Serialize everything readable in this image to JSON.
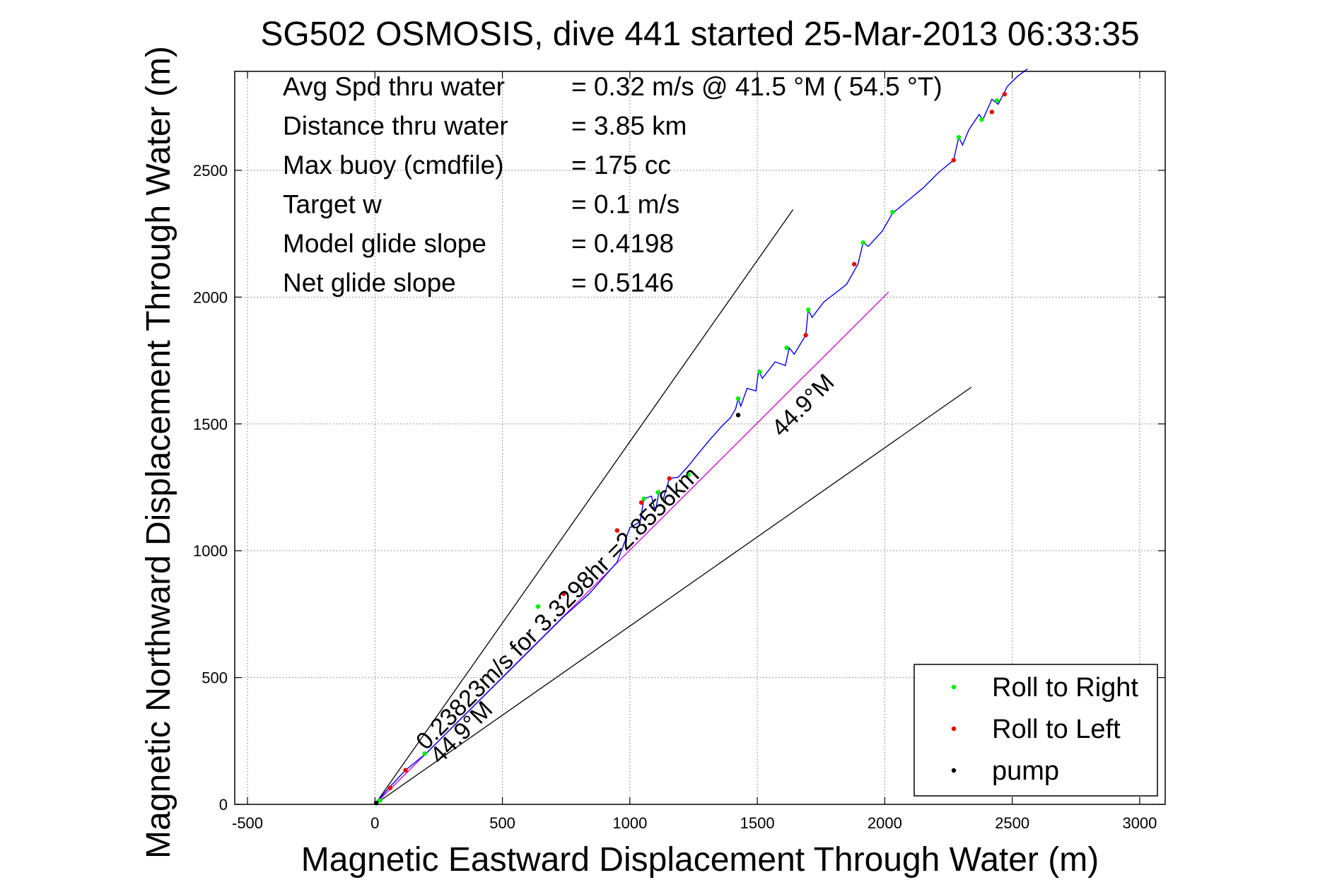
{
  "chart_data": {
    "type": "line",
    "title": "SG502 OSMOSIS, dive 441 started 25-Mar-2013 06:33:35",
    "xlabel": "Magnetic Eastward Displacement Through Water (m)",
    "ylabel": "Magnetic Northward Displacement Through Water (m)",
    "xlim": [
      -550,
      3100
    ],
    "ylim": [
      0,
      2890
    ],
    "xticks": [
      -500,
      0,
      500,
      1000,
      1500,
      2000,
      2500,
      3000
    ],
    "yticks": [
      0,
      500,
      1000,
      1500,
      2000,
      2500
    ],
    "grid": true,
    "info": [
      {
        "label": "Avg Spd thru water",
        "value": "=  0.32 m/s @  41.5 °M ( 54.5 °T)"
      },
      {
        "label": "Distance thru water",
        "value": "=  3.85 km"
      },
      {
        "label": "Max buoy (cmdfile)",
        "value": "= 175 cc"
      },
      {
        "label": "Target w",
        "value": "= 0.1 m/s"
      },
      {
        "label": "Model glide slope",
        "value": "= 0.4198"
      },
      {
        "label": "Net glide slope",
        "value": "= 0.5146"
      }
    ],
    "reference_lines": [
      {
        "from": [
          0,
          0
        ],
        "to": [
          1640,
          2345
        ],
        "color": "#000000"
      },
      {
        "from": [
          0,
          0
        ],
        "to": [
          2340,
          1645
        ],
        "color": "#000000"
      }
    ],
    "heading_line": {
      "from": [
        0,
        0
      ],
      "to": [
        2015,
        2020
      ],
      "color": "#cc00cc"
    },
    "annotations": [
      {
        "text": "0.23823m/s for 3.3298hr =2.8556km",
        "x": 200,
        "y": 210,
        "angle_deg": 45
      },
      {
        "text": "44.9°M",
        "x": 255,
        "y": 155,
        "angle_deg": 45
      },
      {
        "text": "44.9°M",
        "x": 1595,
        "y": 1445,
        "angle_deg": 45
      }
    ],
    "series": [
      {
        "name": "",
        "color": "#0000ff",
        "x": [
          0,
          50,
          120,
          200,
          290,
          380,
          470,
          560,
          650,
          740,
          840,
          950,
          1000,
          1040,
          1055,
          1085,
          1100,
          1115,
          1130,
          1155,
          1190,
          1230,
          1270,
          1320,
          1360,
          1395,
          1415,
          1425,
          1435,
          1460,
          1495,
          1505,
          1520,
          1570,
          1610,
          1625,
          1645,
          1690,
          1700,
          1715,
          1760,
          1850,
          1895,
          1915,
          1935,
          1990,
          2030,
          2090,
          2150,
          2210,
          2270,
          2290,
          2305,
          2330,
          2370,
          2385,
          2420,
          2445,
          2480,
          2520,
          2560
        ],
        "y": [
          0,
          60,
          135,
          200,
          290,
          380,
          470,
          560,
          650,
          740,
          830,
          955,
          1090,
          1115,
          1205,
          1215,
          1155,
          1235,
          1200,
          1285,
          1290,
          1335,
          1385,
          1445,
          1490,
          1525,
          1560,
          1600,
          1570,
          1640,
          1630,
          1710,
          1680,
          1745,
          1730,
          1800,
          1775,
          1850,
          1950,
          1920,
          1980,
          2050,
          2130,
          2215,
          2200,
          2260,
          2330,
          2380,
          2430,
          2490,
          2540,
          2630,
          2600,
          2660,
          2720,
          2700,
          2780,
          2760,
          2830,
          2870,
          2900
        ]
      }
    ],
    "markers": {
      "roll_right": [
        [
          20,
          15
        ],
        [
          195,
          200
        ],
        [
          640,
          780
        ],
        [
          1055,
          1205
        ],
        [
          1110,
          1230
        ],
        [
          1230,
          1300
        ],
        [
          1425,
          1600
        ],
        [
          1510,
          1705
        ],
        [
          1615,
          1800
        ],
        [
          1700,
          1950
        ],
        [
          1915,
          2215
        ],
        [
          2030,
          2335
        ],
        [
          2290,
          2630
        ],
        [
          2380,
          2700
        ],
        [
          2440,
          2775
        ]
      ],
      "roll_left": [
        [
          60,
          65
        ],
        [
          120,
          135
        ],
        [
          740,
          830
        ],
        [
          950,
          1080
        ],
        [
          1045,
          1190
        ],
        [
          1155,
          1285
        ],
        [
          1690,
          1850
        ],
        [
          1880,
          2130
        ],
        [
          2270,
          2540
        ],
        [
          2420,
          2730
        ],
        [
          2470,
          2800
        ]
      ],
      "pump": [
        [
          5,
          5
        ],
        [
          1425,
          1535
        ]
      ]
    },
    "legend": {
      "position": "bottom-right",
      "entries": [
        {
          "label": "Roll to Right",
          "color": "#00ee00"
        },
        {
          "label": "Roll to Left",
          "color": "#ee0000"
        },
        {
          "label": "pump",
          "color": "#000000"
        }
      ]
    }
  }
}
